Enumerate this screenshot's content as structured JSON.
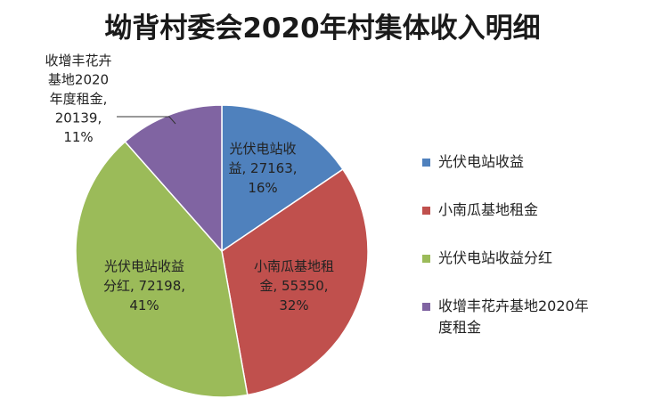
{
  "chart_data": {
    "type": "pie",
    "title": "坳背村委会2020年村集体收入明细",
    "slices": [
      {
        "name": "光伏电站收益",
        "value": 27163,
        "percent": "16%",
        "label_lines": [
          "光伏电站收",
          "益, 27163,",
          "16%"
        ],
        "color": "#4f81bd"
      },
      {
        "name": "小南瓜基地租金",
        "value": 55350,
        "percent": "32%",
        "label_lines": [
          "小南瓜基地租",
          "金, 55350,",
          "32%"
        ],
        "color": "#c0504d"
      },
      {
        "name": "光伏电站收益分红",
        "value": 72198,
        "percent": "41%",
        "label_lines": [
          "光伏电站收益",
          "分红, 72198,",
          "41%"
        ],
        "color": "#9bbb59"
      },
      {
        "name": "收增丰花卉基地2020年度租金",
        "value": 20139,
        "percent": "11%",
        "label_lines": [
          "收增丰花卉",
          "基地2020",
          "年度租金,",
          "20139,",
          "11%"
        ],
        "color": "#8064a2"
      }
    ],
    "legend": {
      "position": "right",
      "entries": [
        {
          "lines": [
            "光伏电站收益"
          ]
        },
        {
          "lines": [
            "小南瓜基地租金"
          ]
        },
        {
          "lines": [
            "光伏电站收益分红"
          ]
        },
        {
          "lines": [
            "收增丰花卉基地2020年",
            "度租金"
          ]
        }
      ]
    }
  }
}
